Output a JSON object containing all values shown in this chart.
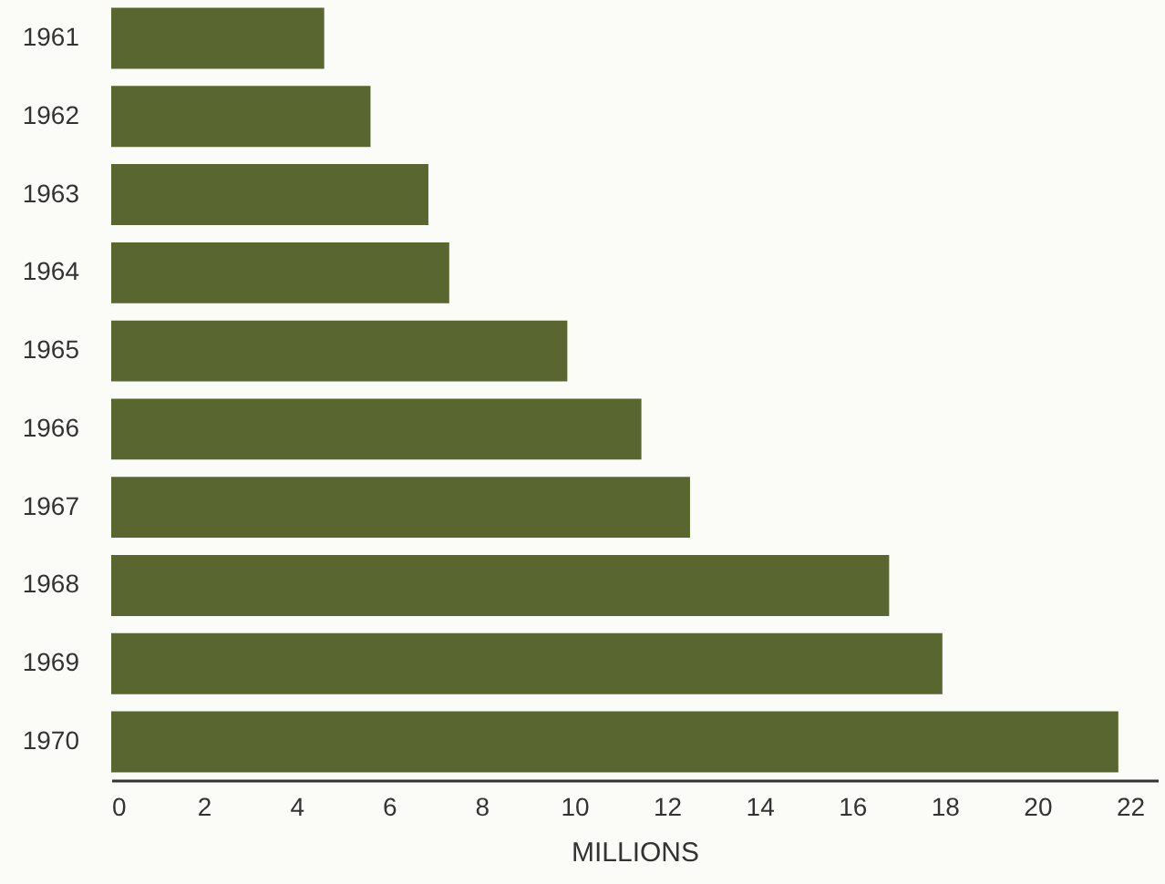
{
  "chart_data": {
    "type": "bar",
    "orientation": "horizontal",
    "xlabel": "MILLIONS",
    "categories": [
      "1961",
      "1962",
      "1963",
      "1964",
      "1965",
      "1966",
      "1967",
      "1968",
      "1969",
      "1970"
    ],
    "values": [
      4.6,
      5.6,
      6.85,
      7.3,
      9.85,
      11.45,
      12.5,
      16.8,
      17.95,
      21.75
    ],
    "color": "#5a6630",
    "xlim": [
      0,
      22.6
    ],
    "xticks": [
      0,
      2,
      4,
      6,
      8,
      10,
      12,
      14,
      16,
      18,
      20,
      22
    ],
    "grid": false
  }
}
